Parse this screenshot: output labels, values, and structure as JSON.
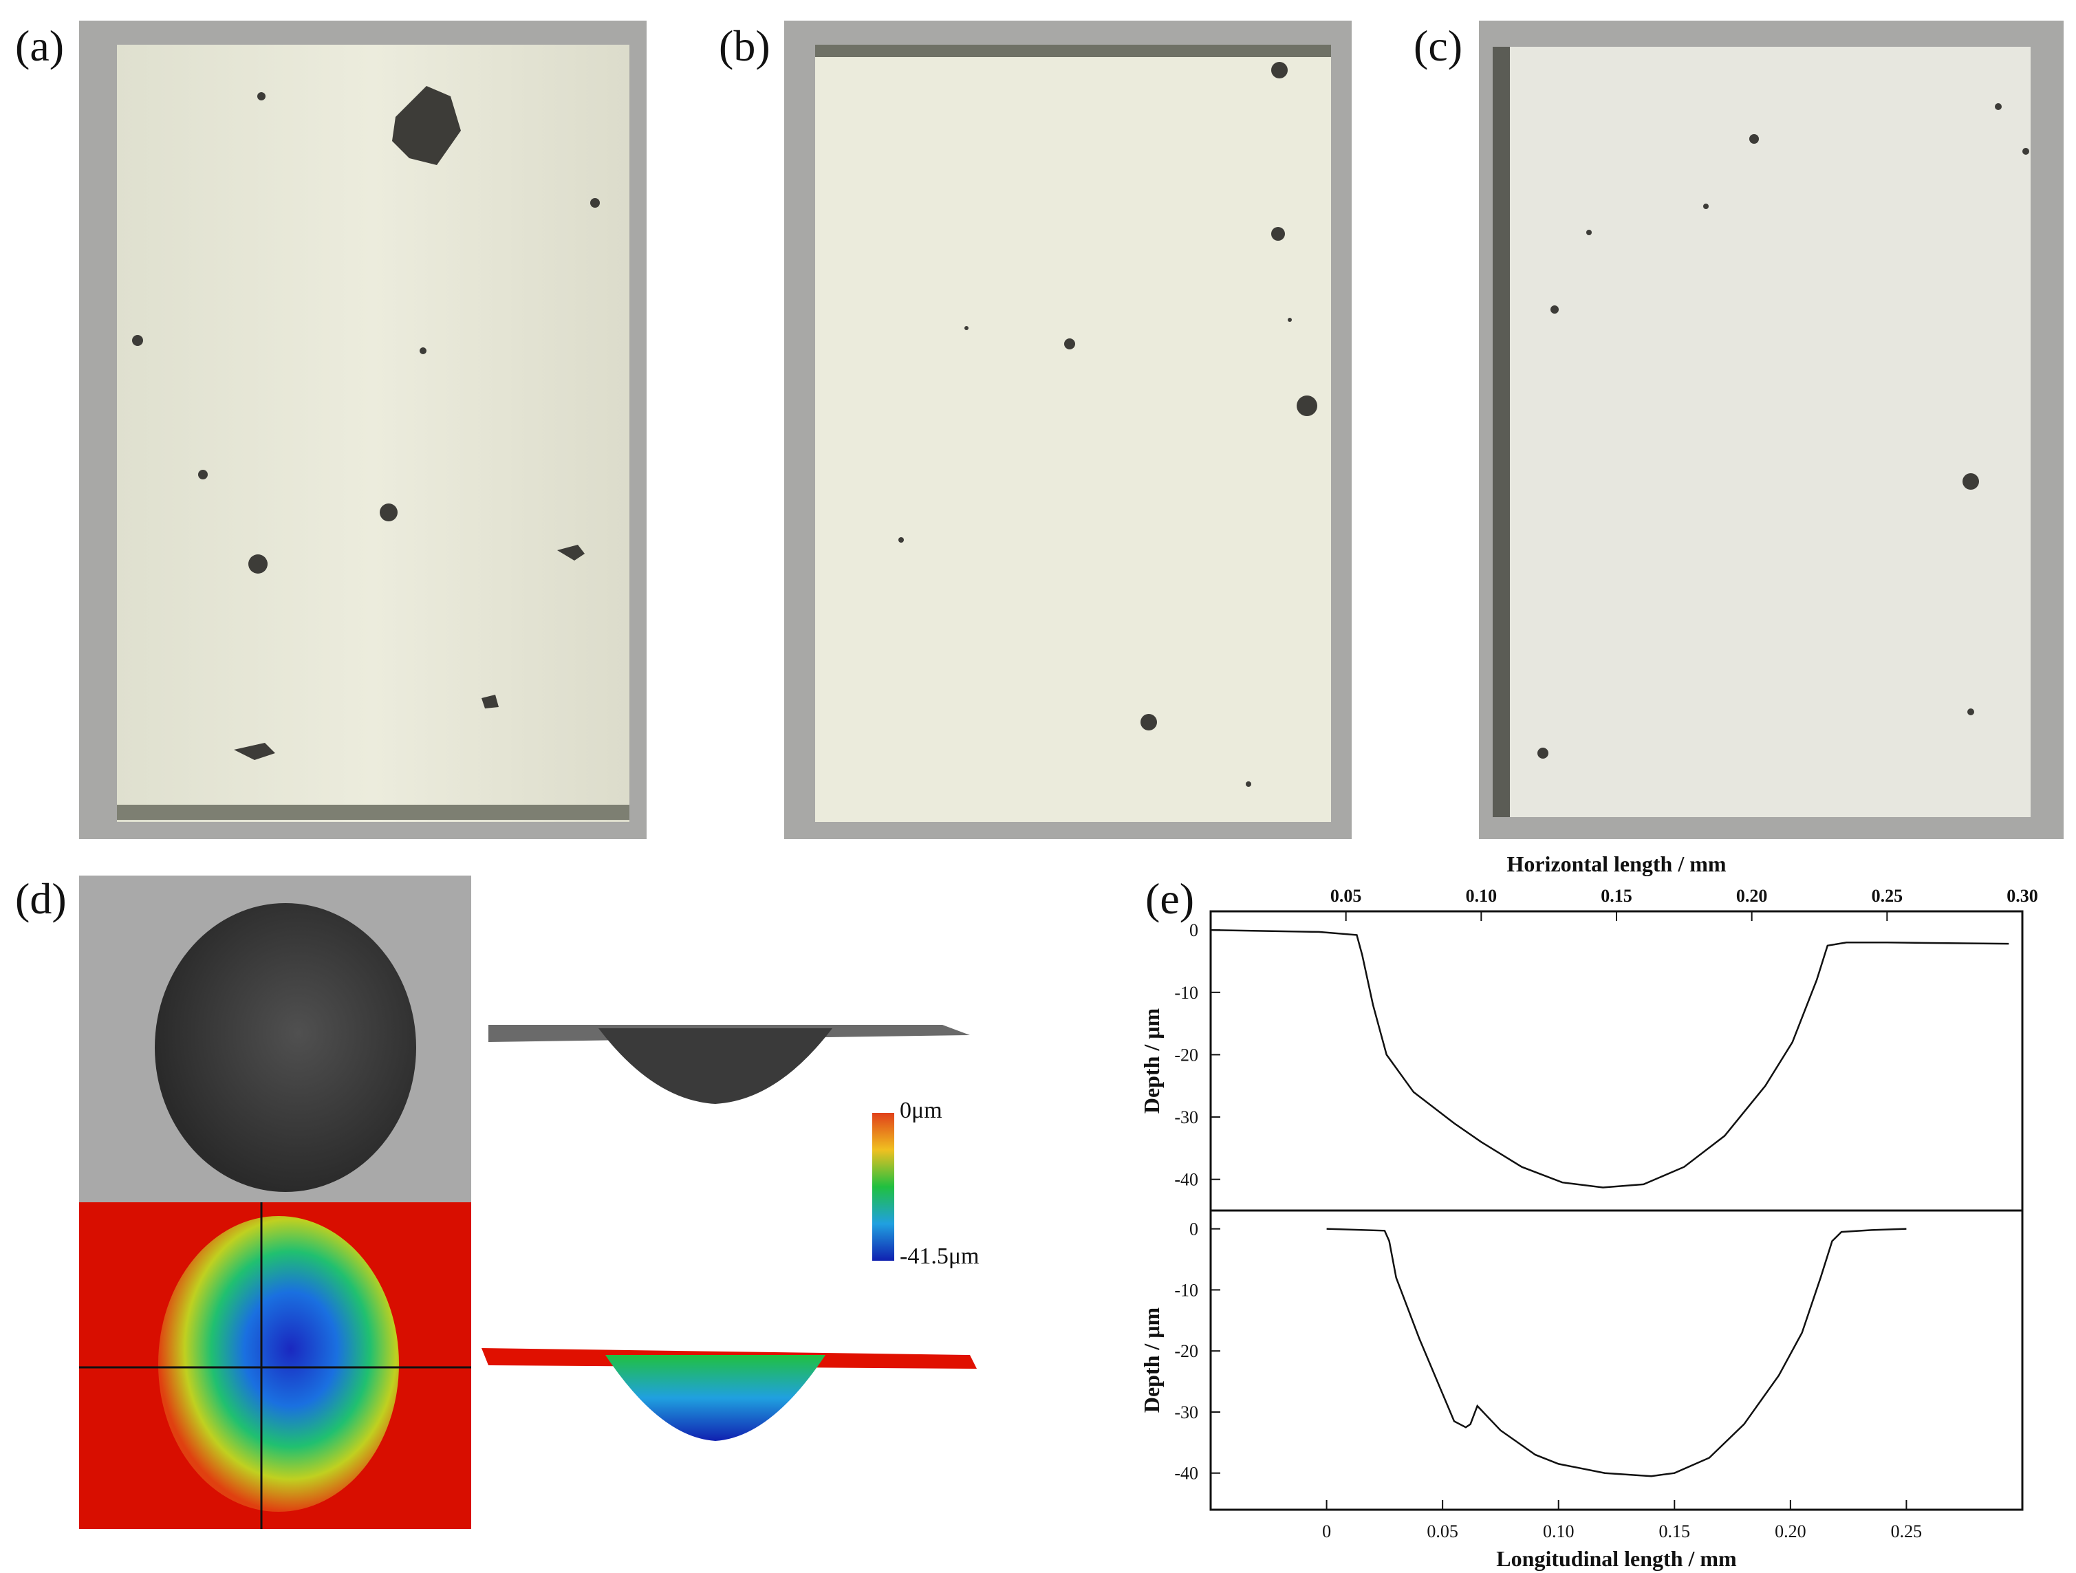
{
  "panels": {
    "a": {
      "label": "(a)"
    },
    "b": {
      "label": "(b)"
    },
    "c": {
      "label": "(c)"
    },
    "d": {
      "label": "(d)",
      "colorbar": {
        "max_label": "0μm",
        "min_label": "-41.5μm",
        "colors": [
          "#e0401a",
          "#f0c020",
          "#20c040",
          "#20a0e0",
          "#1020b0"
        ]
      }
    },
    "e": {
      "label": "(e)"
    }
  },
  "chart_data": [
    {
      "type": "line",
      "panel": "e-top",
      "xlabel": "Horizontal length / mm",
      "ylabel": "Depth / μm",
      "x_ticks": [
        "0.05",
        "0.10",
        "0.15",
        "0.20",
        "0.25",
        "0.30"
      ],
      "y_ticks": [
        "0",
        "-10",
        "-20",
        "-30",
        "-40"
      ],
      "xlim": [
        0.0,
        0.3
      ],
      "ylim": [
        -45,
        3
      ],
      "series": [
        {
          "x": [
            0.0,
            0.04,
            0.054,
            0.056,
            0.06,
            0.065,
            0.075,
            0.09,
            0.1,
            0.115,
            0.13,
            0.145,
            0.16,
            0.175,
            0.19,
            0.205,
            0.215,
            0.224,
            0.228,
            0.235,
            0.25,
            0.295
          ],
          "y": [
            0.0,
            -0.3,
            -0.8,
            -4,
            -12,
            -20,
            -26,
            -31,
            -34,
            -38,
            -40.5,
            -41.3,
            -40.8,
            -38,
            -33,
            -25,
            -18,
            -8,
            -2.5,
            -2.0,
            -2.0,
            -2.2
          ]
        }
      ]
    },
    {
      "type": "line",
      "panel": "e-bottom",
      "xlabel": "Longitudinal length / mm",
      "ylabel": "Depth / μm",
      "x_ticks": [
        "0",
        "0.05",
        "0.10",
        "0.15",
        "0.20",
        "0.25"
      ],
      "y_ticks": [
        "0",
        "-10",
        "-20",
        "-30",
        "-40"
      ],
      "xlim": [
        -0.05,
        0.3
      ],
      "ylim": [
        -46,
        3
      ],
      "series": [
        {
          "x": [
            0.0,
            0.025,
            0.027,
            0.03,
            0.04,
            0.05,
            0.055,
            0.06,
            0.062,
            0.065,
            0.075,
            0.09,
            0.1,
            0.12,
            0.14,
            0.15,
            0.165,
            0.18,
            0.195,
            0.205,
            0.213,
            0.218,
            0.222,
            0.235,
            0.25
          ],
          "y": [
            0.0,
            -0.3,
            -2,
            -8,
            -18,
            -27,
            -31.5,
            -32.5,
            -32,
            -29,
            -33,
            -37,
            -38.5,
            -40,
            -40.5,
            -40,
            -37.5,
            -32,
            -24,
            -17,
            -8,
            -2,
            -0.5,
            -0.2,
            0.0
          ]
        }
      ]
    }
  ]
}
